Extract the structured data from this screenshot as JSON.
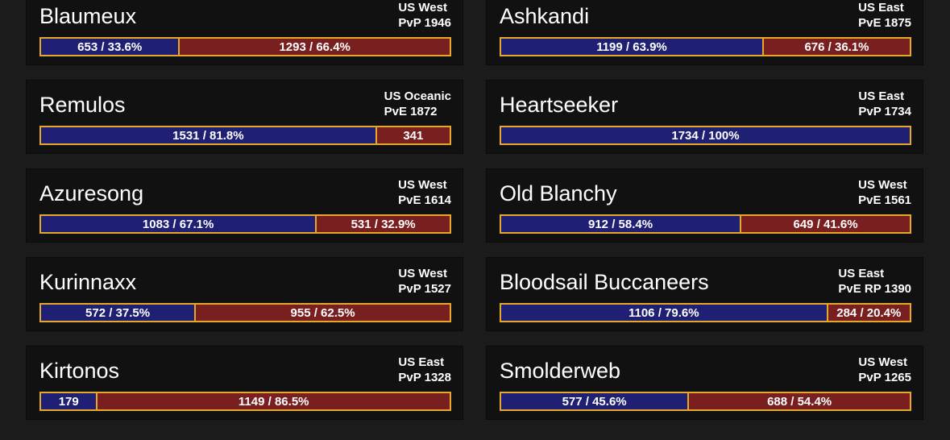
{
  "colors": {
    "alliance": "#1f1f74",
    "horde": "#7a1f1f",
    "bar_border": "#e6a829",
    "card_bg": "#111111",
    "page_bg": "#1b1b1b"
  },
  "servers": [
    {
      "name": "Blaumeux",
      "region": "US West",
      "type": "PvP 1946",
      "alliance_fraction": 0.336,
      "alliance_label": "653 / 33.6%",
      "horde_label": "1293 / 66.4%"
    },
    {
      "name": "Ashkandi",
      "region": "US East",
      "type": "PvE 1875",
      "alliance_fraction": 0.639,
      "alliance_label": "1199 / 63.9%",
      "horde_label": "676 / 36.1%"
    },
    {
      "name": "Remulos",
      "region": "US Oceanic",
      "type": "PvE 1872",
      "alliance_fraction": 0.818,
      "alliance_label": "1531 / 81.8%",
      "horde_label": "341"
    },
    {
      "name": "Heartseeker",
      "region": "US East",
      "type": "PvP 1734",
      "alliance_fraction": 1.0,
      "alliance_label": "1734 / 100%",
      "horde_label": ""
    },
    {
      "name": "Azuresong",
      "region": "US West",
      "type": "PvE 1614",
      "alliance_fraction": 0.671,
      "alliance_label": "1083 / 67.1%",
      "horde_label": "531 / 32.9%"
    },
    {
      "name": "Old Blanchy",
      "region": "US West",
      "type": "PvE 1561",
      "alliance_fraction": 0.584,
      "alliance_label": "912 / 58.4%",
      "horde_label": "649 / 41.6%"
    },
    {
      "name": "Kurinnaxx",
      "region": "US West",
      "type": "PvP 1527",
      "alliance_fraction": 0.375,
      "alliance_label": "572 / 37.5%",
      "horde_label": "955 / 62.5%"
    },
    {
      "name": "Bloodsail Buccaneers",
      "region": "US East",
      "type": "PvE RP 1390",
      "alliance_fraction": 0.796,
      "alliance_label": "1106 / 79.6%",
      "horde_label": "284 / 20.4%"
    },
    {
      "name": "Kirtonos",
      "region": "US East",
      "type": "PvP 1328",
      "alliance_fraction": 0.135,
      "alliance_label": "179",
      "horde_label": "1149 / 86.5%"
    },
    {
      "name": "Smolderweb",
      "region": "US West",
      "type": "PvP 1265",
      "alliance_fraction": 0.456,
      "alliance_label": "577 / 45.6%",
      "horde_label": "688 / 54.4%"
    }
  ]
}
